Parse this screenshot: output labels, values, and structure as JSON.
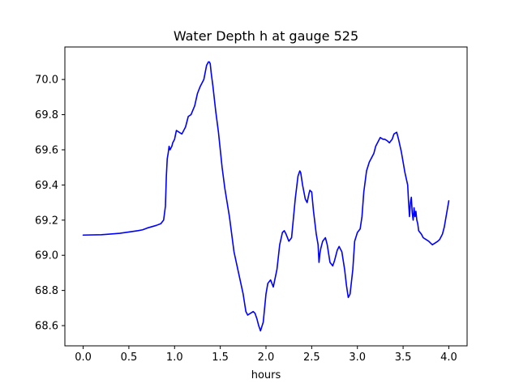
{
  "chart_data": {
    "type": "line",
    "title": "Water Depth h at gauge 525",
    "xlabel": "hours",
    "ylabel": "",
    "xlim": [
      -0.2,
      4.2
    ],
    "ylim": [
      68.485,
      70.185
    ],
    "xticks": [
      0.0,
      0.5,
      1.0,
      1.5,
      2.0,
      2.5,
      3.0,
      3.5,
      4.0
    ],
    "xtick_labels": [
      "0.0",
      "0.5",
      "1.0",
      "1.5",
      "2.0",
      "2.5",
      "3.0",
      "3.5",
      "4.0"
    ],
    "yticks": [
      68.6,
      68.8,
      69.0,
      69.2,
      69.4,
      69.6,
      69.8,
      70.0
    ],
    "ytick_labels": [
      "68.6",
      "68.8",
      "69.0",
      "69.2",
      "69.4",
      "69.6",
      "69.8",
      "70.0"
    ],
    "grid": false,
    "series": [
      {
        "color": "#0000ff",
        "x": [
          0.0,
          0.2,
          0.4,
          0.6,
          0.65,
          0.7,
          0.8,
          0.85,
          0.88,
          0.9,
          0.91,
          0.92,
          0.93,
          0.94,
          0.95,
          0.96,
          0.97,
          0.98,
          1.0,
          1.02,
          1.05,
          1.08,
          1.12,
          1.15,
          1.18,
          1.22,
          1.25,
          1.28,
          1.32,
          1.35,
          1.37,
          1.38,
          1.39,
          1.4,
          1.42,
          1.45,
          1.48,
          1.52,
          1.55,
          1.6,
          1.65,
          1.7,
          1.75,
          1.78,
          1.8,
          1.83,
          1.86,
          1.88,
          1.9,
          1.92,
          1.94,
          1.97,
          2.0,
          2.02,
          2.05,
          2.08,
          2.12,
          2.15,
          2.18,
          2.2,
          2.22,
          2.25,
          2.28,
          2.32,
          2.35,
          2.37,
          2.38,
          2.4,
          2.43,
          2.45,
          2.47,
          2.48,
          2.5,
          2.52,
          2.55,
          2.57,
          2.58,
          2.59,
          2.6,
          2.62,
          2.65,
          2.67,
          2.7,
          2.73,
          2.75,
          2.78,
          2.8,
          2.83,
          2.86,
          2.88,
          2.9,
          2.92,
          2.95,
          2.97,
          3.0,
          3.03,
          3.05,
          3.07,
          3.1,
          3.13,
          3.15,
          3.18,
          3.2,
          3.23,
          3.25,
          3.28,
          3.3,
          3.33,
          3.35,
          3.38,
          3.4,
          3.43,
          3.45,
          3.48,
          3.5,
          3.52,
          3.55,
          3.56,
          3.57,
          3.58,
          3.59,
          3.6,
          3.61,
          3.62,
          3.63,
          3.64,
          3.65,
          3.66,
          3.67,
          3.7,
          3.72,
          3.75,
          3.78,
          3.8,
          3.82,
          3.85,
          3.88,
          3.9,
          3.93,
          3.95,
          3.97,
          4.0
        ],
        "y": [
          69.115,
          69.117,
          69.125,
          69.14,
          69.145,
          69.155,
          69.17,
          69.18,
          69.2,
          69.28,
          69.45,
          69.55,
          69.58,
          69.62,
          69.6,
          69.61,
          69.62,
          69.64,
          69.66,
          69.71,
          69.7,
          69.69,
          69.73,
          69.79,
          69.8,
          69.85,
          69.92,
          69.96,
          70.0,
          70.08,
          70.1,
          70.1,
          70.09,
          70.04,
          69.96,
          69.82,
          69.7,
          69.5,
          69.38,
          69.22,
          69.02,
          68.9,
          68.78,
          68.68,
          68.66,
          68.67,
          68.68,
          68.67,
          68.64,
          68.6,
          68.57,
          68.62,
          68.78,
          68.84,
          68.86,
          68.82,
          68.92,
          69.06,
          69.13,
          69.14,
          69.12,
          69.08,
          69.1,
          69.32,
          69.45,
          69.48,
          69.47,
          69.4,
          69.32,
          69.3,
          69.35,
          69.37,
          69.36,
          69.25,
          69.12,
          69.06,
          68.96,
          69.01,
          69.04,
          69.08,
          69.1,
          69.06,
          68.96,
          68.94,
          68.97,
          69.03,
          69.05,
          69.02,
          68.92,
          68.83,
          68.76,
          68.78,
          68.92,
          69.08,
          69.13,
          69.15,
          69.22,
          69.36,
          69.48,
          69.53,
          69.55,
          69.58,
          69.62,
          69.65,
          69.67,
          69.66,
          69.66,
          69.65,
          69.64,
          69.66,
          69.69,
          69.7,
          69.66,
          69.59,
          69.53,
          69.47,
          69.4,
          69.3,
          69.22,
          69.3,
          69.33,
          69.24,
          69.2,
          69.27,
          69.22,
          69.25,
          69.2,
          69.18,
          69.14,
          69.12,
          69.1,
          69.09,
          69.08,
          69.07,
          69.06,
          69.07,
          69.08,
          69.09,
          69.12,
          69.16,
          69.22,
          69.31
        ]
      }
    ]
  }
}
